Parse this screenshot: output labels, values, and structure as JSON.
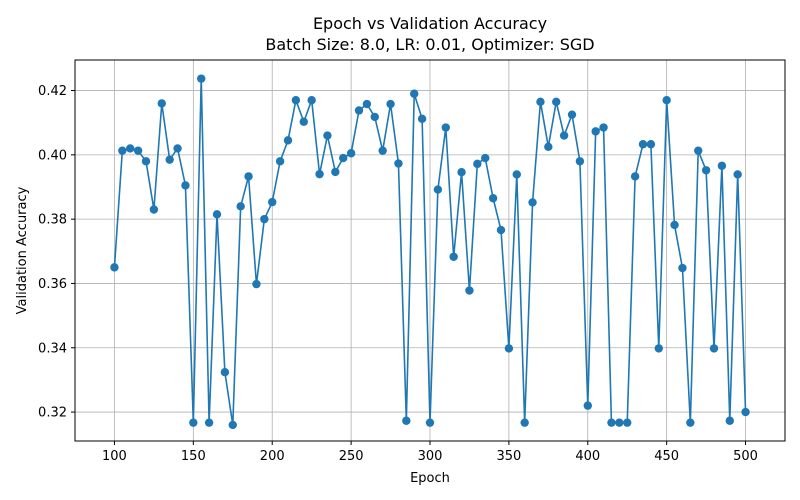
{
  "chart_data": {
    "type": "line",
    "title": "Epoch vs Validation Accuracy",
    "subtitle": "Batch Size: 8.0, LR: 0.01, Optimizer: SGD",
    "xlabel": "Epoch",
    "ylabel": "Validation Accuracy",
    "xlim": [
      75,
      525
    ],
    "ylim": [
      0.311,
      0.4295
    ],
    "xticks": [
      100,
      150,
      200,
      250,
      300,
      350,
      400,
      450,
      500
    ],
    "yticks": [
      0.32,
      0.34,
      0.36,
      0.38,
      0.4,
      0.42
    ],
    "ytick_labels": [
      "0.32",
      "0.34",
      "0.36",
      "0.38",
      "0.40",
      "0.42"
    ],
    "grid": true,
    "color": "#1f77b4",
    "series": [
      {
        "x": [
          100,
          105,
          110,
          115,
          120,
          125,
          130,
          135,
          140,
          145,
          150,
          155,
          160,
          165,
          170,
          175,
          180,
          185,
          190,
          195,
          200,
          205,
          210,
          215,
          220,
          225,
          230,
          235,
          240,
          245,
          250,
          255,
          260,
          265,
          270,
          275,
          280,
          285,
          290,
          295,
          300,
          305,
          310,
          315,
          320,
          325,
          330,
          335,
          340,
          345,
          350,
          355,
          360,
          365,
          370,
          375,
          380,
          385,
          390,
          395,
          400,
          405,
          410,
          415,
          420,
          425,
          430,
          435,
          440,
          445,
          450,
          455,
          460,
          465,
          470,
          475,
          480,
          485,
          490,
          495,
          500
        ],
        "y": [
          0.365,
          0.4013,
          0.402,
          0.4013,
          0.398,
          0.383,
          0.416,
          0.3985,
          0.402,
          0.3905,
          0.3167,
          0.4237,
          0.3167,
          0.3815,
          0.3324,
          0.316,
          0.384,
          0.3933,
          0.3598,
          0.38,
          0.3853,
          0.398,
          0.4045,
          0.417,
          0.4103,
          0.417,
          0.394,
          0.406,
          0.3947,
          0.399,
          0.4005,
          0.4138,
          0.4158,
          0.4118,
          0.4013,
          0.4158,
          0.3973,
          0.3173,
          0.419,
          0.4112,
          0.3167,
          0.3892,
          0.4085,
          0.3683,
          0.3946,
          0.3578,
          0.3972,
          0.399,
          0.3865,
          0.3766,
          0.3398,
          0.3939,
          0.3167,
          0.3852,
          0.4165,
          0.4025,
          0.4165,
          0.406,
          0.4125,
          0.398,
          0.322,
          0.4073,
          0.4085,
          0.3167,
          0.3167,
          0.3167,
          0.3933,
          0.4033,
          0.4033,
          0.3398,
          0.417,
          0.3782,
          0.3648,
          0.3167,
          0.4013,
          0.3952,
          0.3398,
          0.3966,
          0.3173,
          0.3939,
          0.32
        ]
      }
    ]
  }
}
